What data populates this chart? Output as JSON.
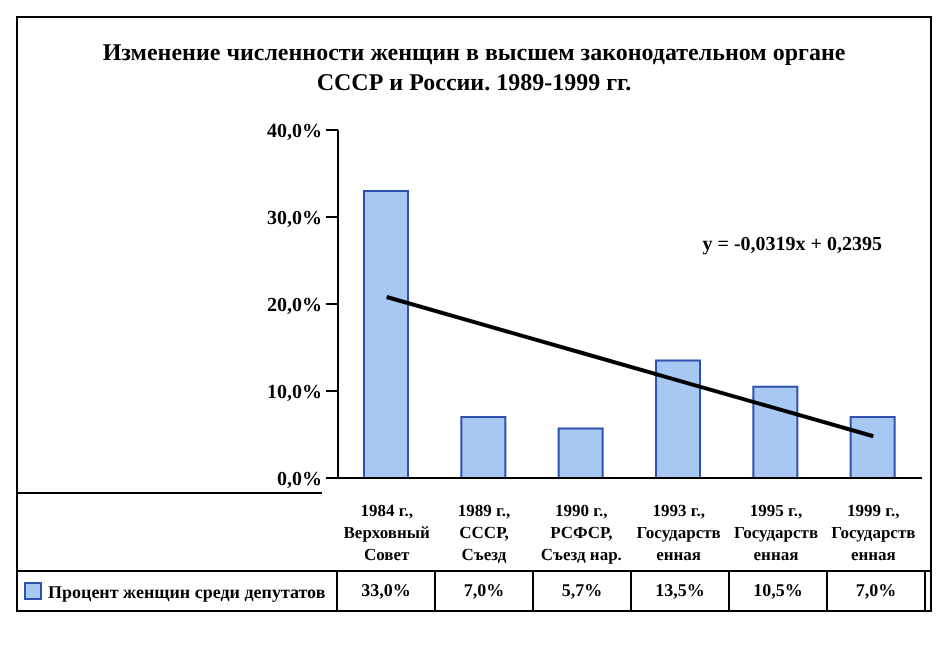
{
  "chart_data": {
    "type": "bar",
    "title": "Изменение численности женщин в высшем законодательном органе СССР и России. 1989-1999 гг.",
    "categories": [
      "1984 г., Верховный Совет",
      "1989 г., СССР, Съезд",
      "1990 г., РСФСР, Съезд нар.",
      "1993 г., Государственная",
      "1995 г., Государственная",
      "1999 г., Государственная"
    ],
    "series": [
      {
        "name": "Процент женщин среди депутатов",
        "color": "#a6c8f2",
        "values": [
          33.0,
          7.0,
          5.7,
          13.5,
          10.5,
          7.0
        ],
        "value_labels": [
          "33,0%",
          "7,0%",
          "5,7%",
          "13,5%",
          "10,5%",
          "7,0%"
        ]
      },
      {
        "type": "line",
        "color": "#000000",
        "values": [
          20.8,
          17.6,
          14.4,
          11.2,
          8.0,
          4.8
        ]
      }
    ],
    "ylim": [
      0,
      40
    ],
    "yticks": [
      {
        "value": 0,
        "label": "0,0%"
      },
      {
        "value": 10,
        "label": "10,0%"
      },
      {
        "value": 20,
        "label": "20,0%"
      },
      {
        "value": 30,
        "label": "30,0%"
      },
      {
        "value": 40,
        "label": "40,0%"
      }
    ],
    "annotations": [
      "y = -0,0319x + 0,2395"
    ],
    "grid": false,
    "legend": "bottom left",
    "marker": "none"
  }
}
